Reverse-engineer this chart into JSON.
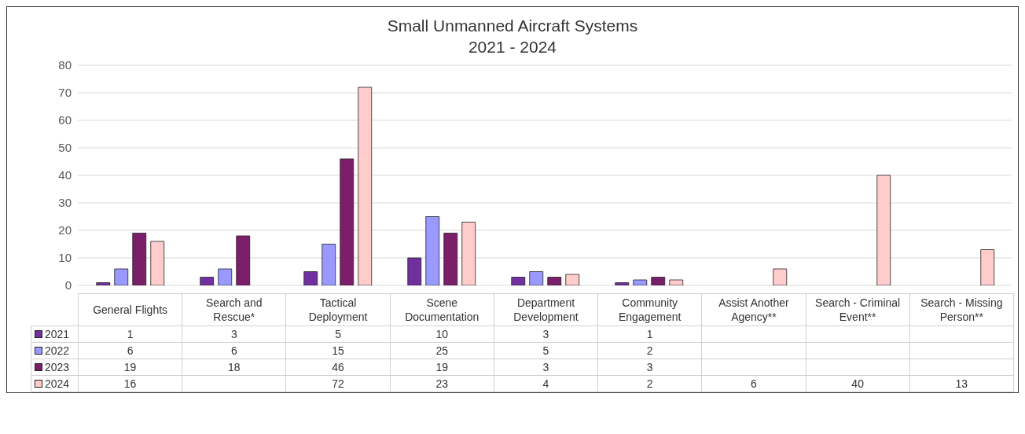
{
  "chart_data": {
    "type": "bar",
    "title": "Small Unmanned Aircraft Systems",
    "subtitle": "2021 - 2024",
    "categories": [
      "General Flights",
      "Search and Rescue*",
      "Tactical Deployment",
      "Scene Documentation",
      "Department Development",
      "Community Engagement",
      "Assist Another Agency**",
      "Search - Criminal Event**",
      "Search - Missing Person**"
    ],
    "series": [
      {
        "name": "2021",
        "color": "#7030a0",
        "values": [
          1,
          3,
          5,
          10,
          3,
          1,
          null,
          null,
          null
        ]
      },
      {
        "name": "2022",
        "color": "#9999ff",
        "values": [
          6,
          6,
          15,
          25,
          5,
          2,
          null,
          null,
          null
        ]
      },
      {
        "name": "2023",
        "color": "#7b1f6b",
        "values": [
          19,
          18,
          46,
          19,
          3,
          3,
          null,
          null,
          null
        ]
      },
      {
        "name": "2024",
        "color": "#ffcccc",
        "values": [
          16,
          null,
          72,
          23,
          4,
          2,
          6,
          40,
          13
        ]
      }
    ],
    "ylim": [
      0,
      80
    ],
    "yticks": [
      0,
      10,
      20,
      30,
      40,
      50,
      60,
      70,
      80
    ],
    "grid": "y",
    "legend": "bottom",
    "data_labels": true
  }
}
